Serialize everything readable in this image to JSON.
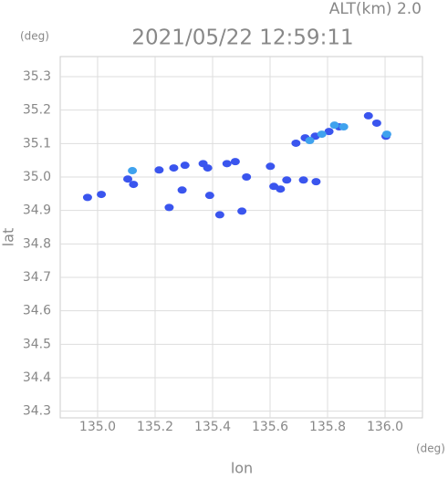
{
  "chart_data": {
    "type": "scatter",
    "title": "2021/05/22 12:59:11",
    "subtitle": "ALT(km) 2.0",
    "x_label": "lon",
    "y_label": "lat",
    "x_unit": "(deg)",
    "y_unit": "(deg)",
    "xlim": [
      134.87,
      136.13
    ],
    "ylim": [
      34.28,
      35.36
    ],
    "xticks": [
      {
        "value": 135,
        "label": "135.0"
      },
      135.2,
      135.4,
      135.6,
      135.8,
      {
        "value": 136,
        "label": "136.0"
      }
    ],
    "yticks": [
      34.3,
      34.4,
      34.5,
      34.6,
      34.7,
      34.8,
      34.9,
      {
        "value": 35,
        "label": "35.0"
      },
      35.1,
      35.2,
      35.3
    ],
    "grid": true,
    "series": [
      {
        "color": "#3a55ee",
        "x": [
          135.013,
          134.965,
          135.105,
          135.125,
          135.214,
          135.265,
          135.304,
          135.367,
          135.383,
          135.45,
          135.479,
          135.39,
          135.425,
          135.502,
          135.601,
          135.613,
          135.636,
          135.658,
          135.716,
          135.76,
          135.69,
          135.722,
          135.757,
          135.805,
          135.84,
          135.942,
          135.971,
          136.003,
          135.249,
          135.518,
          135.294
        ],
        "values": [
          34.948,
          34.939,
          34.994,
          34.978,
          35.021,
          35.027,
          35.035,
          35.04,
          35.027,
          35.04,
          35.046,
          34.945,
          34.887,
          34.898,
          35.032,
          34.972,
          34.964,
          34.991,
          34.991,
          34.986,
          35.101,
          35.117,
          35.122,
          35.136,
          35.15,
          35.183,
          35.161,
          35.122,
          34.909,
          35.0,
          34.961
        ]
      },
      {
        "color": "#3fa2ee",
        "x": [
          135.121,
          135.78,
          135.824,
          135.856,
          136.006,
          135.738
        ],
        "values": [
          35.019,
          35.128,
          35.155,
          35.15,
          35.128,
          35.109
        ]
      }
    ]
  }
}
